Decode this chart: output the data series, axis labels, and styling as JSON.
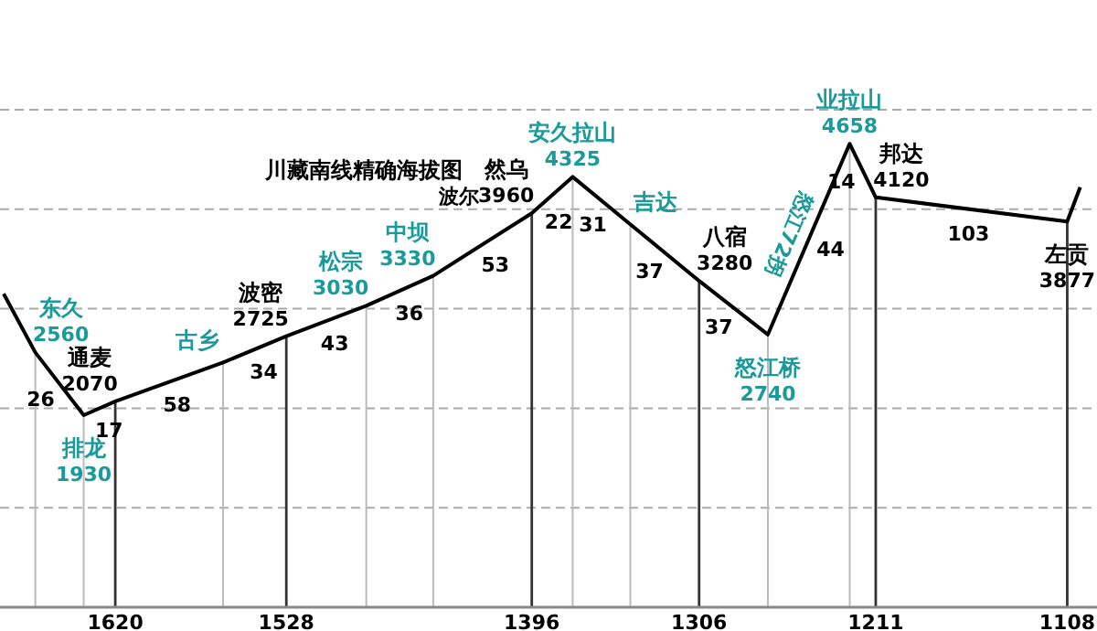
{
  "chart_data": {
    "type": "line",
    "title": "川藏南线精确海拔图",
    "subtitle": "波尔",
    "annotations": [
      {
        "text": "东久",
        "x": 1663,
        "y": 2560
      },
      {
        "text": "排龙",
        "x": 1637,
        "y": 1930
      },
      {
        "text": "通麦",
        "x": 1620,
        "y": 2070
      },
      {
        "text": "古乡",
        "x": 1562,
        "y": 2460
      },
      {
        "text": "波密",
        "x": 1528,
        "y": 2725
      },
      {
        "text": "松宗",
        "x": 1485,
        "y": 3030
      },
      {
        "text": "中坝",
        "x": 1449,
        "y": 3330
      },
      {
        "text": "然乌",
        "x": 1396,
        "y": 3960
      },
      {
        "text": "安久拉山",
        "x": 1374,
        "y": 4325
      },
      {
        "text": "吉达",
        "x": 1343,
        "y": 3850
      },
      {
        "text": "八宿",
        "x": 1306,
        "y": 3280
      },
      {
        "text": "怒江桥",
        "x": 1269,
        "y": 2740
      },
      {
        "text": "业拉山",
        "x": 1225,
        "y": 4658
      },
      {
        "text": "邦达",
        "x": 1211,
        "y": 4120
      },
      {
        "text": "左贡",
        "x": 1108,
        "y": 3877
      },
      {
        "text": "26",
        "x": 1650,
        "y": 2245
      },
      {
        "text": "17",
        "x": 1628.5,
        "y": 2000
      },
      {
        "text": "58",
        "x": 1591,
        "y": 2265
      },
      {
        "text": "34",
        "x": 1545,
        "y": 2590
      },
      {
        "text": "43",
        "x": 1506.5,
        "y": 2880
      },
      {
        "text": "36",
        "x": 1467,
        "y": 3180
      },
      {
        "text": "53",
        "x": 1422.5,
        "y": 3645
      },
      {
        "text": "22",
        "x": 1390,
        "y": 4060
      },
      {
        "text": "31",
        "x": 1355,
        "y": 4034
      },
      {
        "text": "37",
        "x": 1324.5,
        "y": 3565
      },
      {
        "text": "37",
        "x": 1287.5,
        "y": 3010
      },
      "怒江72拐",
      {
        "text": "44",
        "x": 1247,
        "y": 3700
      },
      {
        "text": "14",
        "x": 1218,
        "y": 4390
      },
      {
        "text": "103",
        "x": 1159.5,
        "y": 3998
      }
    ],
    "series": [
      {
        "color": "#000000",
        "x": [
          1680,
          1663,
          1637,
          1620,
          1562,
          1528,
          1485,
          1449,
          1396,
          1374,
          1343,
          1306,
          1269,
          1225,
          1211,
          1108,
          1101
        ],
        "values": [
          3150,
          2560,
          1930,
          2070,
          2460,
          2725,
          3030,
          3330,
          3960,
          4325,
          3850,
          3280,
          2740,
          4658,
          4120,
          3877,
          4220
        ],
        "colors": [
          null,
          "#1a9a9a",
          "#1a9a9a",
          "#000000",
          "#1a9a9a",
          "#000000",
          "#1a9a9a",
          "#1a9a9a",
          "#000000",
          "#1a9a9a",
          "#1a9a9a",
          "#000000",
          "#1a9a9a",
          "#1a9a9a",
          "#000000",
          "#000000",
          null
        ],
        "value_labels": [
          null,
          "2560",
          "1930",
          "2070",
          null,
          "2725",
          "3030",
          "3330",
          "3960",
          "4325",
          null,
          "3280",
          "2740",
          "4658",
          "4120",
          "3877",
          null
        ]
      }
    ],
    "xlim": [
      1682,
      1092
    ],
    "xticks": [
      1620,
      1528,
      1396,
      1306,
      1211,
      1108
    ],
    "ylim": [
      0,
      5000
    ],
    "yticks": [
      {
        "value": 1000,
        "label": null
      },
      {
        "value": 2000,
        "label": null
      },
      {
        "value": 3000,
        "label": null
      },
      {
        "value": 4000,
        "label": null
      },
      {
        "value": 5000,
        "label": null
      }
    ],
    "ref_lines": [
      {
        "axis": "x",
        "value": 1663,
        "color": "#bbbbbb"
      },
      {
        "axis": "x",
        "value": 1637,
        "color": "#bbbbbb"
      },
      {
        "axis": "x",
        "value": 1562,
        "color": "#bbbbbb"
      },
      {
        "axis": "x",
        "value": 1485,
        "color": "#bbbbbb"
      },
      {
        "axis": "x",
        "value": 1449,
        "color": "#bbbbbb"
      },
      {
        "axis": "x",
        "value": 1374,
        "color": "#bbbbbb"
      },
      {
        "axis": "x",
        "value": 1343,
        "color": "#bbbbbb"
      },
      {
        "axis": "x",
        "value": 1269,
        "color": "#bbbbbb"
      },
      {
        "axis": "x",
        "value": 1225,
        "color": "#bbbbbb"
      }
    ],
    "grid": true,
    "tick_labels": "x"
  }
}
